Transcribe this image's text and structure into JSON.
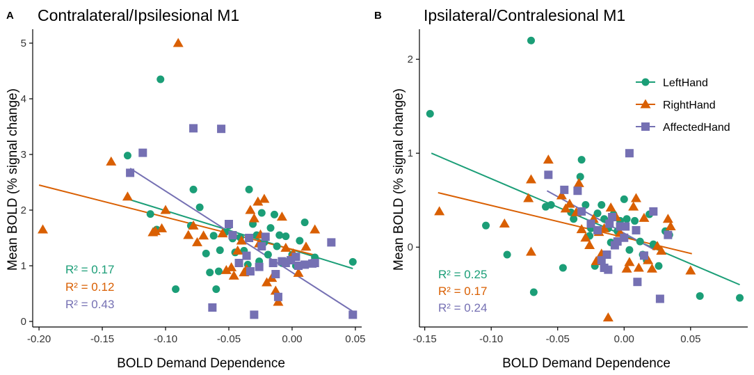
{
  "colors": {
    "left": "#1b9e77",
    "right": "#d95f02",
    "affected": "#7570b3",
    "axis": "#000000"
  },
  "chart_data": [
    {
      "panel_label": "A",
      "type": "scatter",
      "title": "Contralateral/Ipsilesional M1",
      "xlabel": "BOLD Demand Dependence",
      "ylabel": "Mean BOLD (% signal change)",
      "xlim": [
        -0.205,
        0.055
      ],
      "ylim": [
        -0.1,
        5.25
      ],
      "xticks": [
        -0.2,
        -0.15,
        -0.1,
        -0.05,
        0.0,
        0.05
      ],
      "xtick_labels": [
        "-0.20",
        "-0.15",
        "-0.10",
        "-0.05",
        "0.00",
        "0.05"
      ],
      "yticks": [
        0,
        1,
        2,
        3,
        4,
        5
      ],
      "ytick_labels": [
        "0",
        "1",
        "2",
        "3",
        "4",
        "5"
      ],
      "legend": null,
      "annotations": [
        {
          "text": "R² = 0.17",
          "series": "LeftHand"
        },
        {
          "text": "R² = 0.12",
          "series": "RightHand"
        },
        {
          "text": "R² = 0.43",
          "series": "AffectedHand"
        }
      ],
      "series": [
        {
          "name": "LeftHand",
          "marker": "circle",
          "color_key": "left",
          "fit": {
            "x0": -0.13,
            "y0": 2.2,
            "x1": 0.048,
            "y1": 0.95
          },
          "points": [
            [
              -0.104,
              4.35
            ],
            [
              -0.13,
              2.98
            ],
            [
              -0.112,
              1.93
            ],
            [
              -0.107,
              1.65
            ],
            [
              -0.078,
              2.37
            ],
            [
              -0.073,
              2.05
            ],
            [
              -0.08,
              1.72
            ],
            [
              -0.068,
              1.22
            ],
            [
              -0.065,
              0.88
            ],
            [
              -0.06,
              0.58
            ],
            [
              -0.062,
              1.54
            ],
            [
              -0.057,
              1.28
            ],
            [
              -0.053,
              1.6
            ],
            [
              -0.05,
              1.72
            ],
            [
              -0.047,
              1.49
            ],
            [
              -0.045,
              1.24
            ],
            [
              -0.041,
              1.51
            ],
            [
              -0.038,
              1.27
            ],
            [
              -0.034,
              2.37
            ],
            [
              -0.031,
              1.75
            ],
            [
              -0.028,
              1.55
            ],
            [
              -0.026,
              1.08
            ],
            [
              -0.024,
              1.95
            ],
            [
              -0.022,
              1.42
            ],
            [
              -0.019,
              1.2
            ],
            [
              -0.017,
              1.68
            ],
            [
              -0.014,
              1.92
            ],
            [
              -0.012,
              1.35
            ],
            [
              -0.01,
              1.55
            ],
            [
              -0.008,
              1.05
            ],
            [
              -0.005,
              1.53
            ],
            [
              -0.002,
              1.1
            ],
            [
              0.0,
              1.2
            ],
            [
              0.003,
              1.0
            ],
            [
              0.006,
              1.45
            ],
            [
              0.01,
              1.78
            ],
            [
              0.018,
              1.15
            ],
            [
              0.048,
              1.07
            ],
            [
              -0.092,
              0.58
            ],
            [
              -0.058,
              0.9
            ],
            [
              -0.035,
              1.02
            ]
          ]
        },
        {
          "name": "RightHand",
          "marker": "triangle",
          "color_key": "right",
          "fit": {
            "x0": -0.2,
            "y0": 2.45,
            "x1": 0.02,
            "y1": 1.18
          },
          "points": [
            [
              -0.197,
              1.65
            ],
            [
              -0.143,
              2.87
            ],
            [
              -0.13,
              2.24
            ],
            [
              -0.11,
              1.6
            ],
            [
              -0.108,
              1.62
            ],
            [
              -0.103,
              1.67
            ],
            [
              -0.1,
              2.0
            ],
            [
              -0.09,
              5.0
            ],
            [
              -0.082,
              1.55
            ],
            [
              -0.078,
              1.72
            ],
            [
              -0.075,
              1.42
            ],
            [
              -0.07,
              1.54
            ],
            [
              -0.055,
              1.58
            ],
            [
              -0.052,
              0.92
            ],
            [
              -0.048,
              0.97
            ],
            [
              -0.046,
              0.82
            ],
            [
              -0.043,
              1.27
            ],
            [
              -0.04,
              1.45
            ],
            [
              -0.036,
              0.94
            ],
            [
              -0.033,
              2.0
            ],
            [
              -0.03,
              1.85
            ],
            [
              -0.027,
              2.15
            ],
            [
              -0.025,
              1.56
            ],
            [
              -0.022,
              2.2
            ],
            [
              -0.02,
              0.7
            ],
            [
              -0.016,
              0.78
            ],
            [
              -0.013,
              0.55
            ],
            [
              -0.011,
              0.35
            ],
            [
              -0.008,
              1.88
            ],
            [
              -0.005,
              1.32
            ],
            [
              0.001,
              1.22
            ],
            [
              0.005,
              0.87
            ],
            [
              0.011,
              1.34
            ],
            [
              0.018,
              1.65
            ],
            [
              -0.026,
              1.4
            ],
            [
              -0.038,
              0.88
            ]
          ]
        },
        {
          "name": "AffectedHand",
          "marker": "square",
          "color_key": "affected",
          "fit": {
            "x0": -0.128,
            "y0": 2.75,
            "x1": 0.048,
            "y1": 0.18
          },
          "points": [
            [
              -0.128,
              2.67
            ],
            [
              -0.118,
              3.03
            ],
            [
              -0.078,
              3.47
            ],
            [
              -0.056,
              3.46
            ],
            [
              -0.05,
              1.75
            ],
            [
              -0.047,
              1.55
            ],
            [
              -0.042,
              1.05
            ],
            [
              -0.036,
              1.18
            ],
            [
              -0.034,
              1.5
            ],
            [
              -0.03,
              0.12
            ],
            [
              -0.026,
              0.98
            ],
            [
              -0.024,
              1.35
            ],
            [
              -0.021,
              1.52
            ],
            [
              -0.015,
              1.05
            ],
            [
              -0.013,
              0.85
            ],
            [
              -0.011,
              0.44
            ],
            [
              -0.008,
              1.08
            ],
            [
              -0.005,
              1.05
            ],
            [
              -0.001,
              1.1
            ],
            [
              0.003,
              1.16
            ],
            [
              0.005,
              1.0
            ],
            [
              0.01,
              1.02
            ],
            [
              0.016,
              1.04
            ],
            [
              0.018,
              1.05
            ],
            [
              0.031,
              1.42
            ],
            [
              0.048,
              0.12
            ],
            [
              -0.063,
              0.25
            ],
            [
              -0.033,
              0.9
            ]
          ]
        }
      ]
    },
    {
      "panel_label": "B",
      "type": "scatter",
      "title": "Ipsilateral/Contralesional M1",
      "xlabel": "BOLD Demand Dependence",
      "ylabel": "Mean BOLD (% signal change)",
      "xlim": [
        -0.154,
        0.093
      ],
      "ylim": [
        -0.85,
        2.32
      ],
      "xticks": [
        -0.15,
        -0.1,
        -0.05,
        0.0,
        0.05
      ],
      "xtick_labels": [
        "-0.15",
        "-0.10",
        "-0.05",
        "0.00",
        "0.05"
      ],
      "yticks": [
        0,
        1,
        2
      ],
      "ytick_labels": [
        "0",
        "1",
        "2"
      ],
      "legend": {
        "position": "top-right",
        "entries": [
          {
            "label": "LeftHand",
            "marker": "circle",
            "color_key": "left"
          },
          {
            "label": "RightHand",
            "marker": "triangle",
            "color_key": "right"
          },
          {
            "label": "AffectedHand",
            "marker": "square",
            "color_key": "affected"
          }
        ]
      },
      "annotations": [
        {
          "text": "R² = 0.25",
          "series": "LeftHand"
        },
        {
          "text": "R² = 0.17",
          "series": "RightHand"
        },
        {
          "text": "R² = 0.24",
          "series": "AffectedHand"
        }
      ],
      "series": [
        {
          "name": "LeftHand",
          "marker": "circle",
          "color_key": "left",
          "fit": {
            "x0": -0.145,
            "y0": 1.0,
            "x1": 0.087,
            "y1": -0.4
          },
          "points": [
            [
              -0.146,
              1.42
            ],
            [
              -0.104,
              0.23
            ],
            [
              -0.088,
              -0.08
            ],
            [
              -0.07,
              2.2
            ],
            [
              -0.068,
              -0.48
            ],
            [
              -0.059,
              0.43
            ],
            [
              -0.055,
              0.45
            ],
            [
              -0.046,
              -0.22
            ],
            [
              -0.04,
              0.37
            ],
            [
              -0.038,
              0.3
            ],
            [
              -0.033,
              0.75
            ],
            [
              -0.032,
              0.93
            ],
            [
              -0.029,
              0.45
            ],
            [
              -0.025,
              0.2
            ],
            [
              -0.022,
              -0.2
            ],
            [
              -0.02,
              0.36
            ],
            [
              -0.017,
              0.45
            ],
            [
              -0.015,
              0.3
            ],
            [
              -0.012,
              0.2
            ],
            [
              -0.01,
              0.05
            ],
            [
              -0.008,
              0.35
            ],
            [
              -0.005,
              0.17
            ],
            [
              -0.003,
              0.28
            ],
            [
              0.0,
              0.51
            ],
            [
              0.002,
              0.3
            ],
            [
              0.004,
              -0.03
            ],
            [
              0.008,
              0.28
            ],
            [
              0.012,
              0.06
            ],
            [
              0.014,
              -0.08
            ],
            [
              0.017,
              -0.14
            ],
            [
              0.019,
              0.35
            ],
            [
              0.022,
              0.03
            ],
            [
              0.026,
              -0.2
            ],
            [
              0.031,
              0.17
            ],
            [
              0.034,
              0.13
            ],
            [
              0.057,
              -0.52
            ],
            [
              0.087,
              -0.54
            ],
            [
              -0.026,
              0.12
            ]
          ]
        },
        {
          "name": "RightHand",
          "marker": "triangle",
          "color_key": "right",
          "fit": {
            "x0": -0.14,
            "y0": 0.58,
            "x1": 0.051,
            "y1": -0.07
          },
          "points": [
            [
              -0.139,
              0.38
            ],
            [
              -0.09,
              0.25
            ],
            [
              -0.07,
              0.72
            ],
            [
              -0.07,
              -0.05
            ],
            [
              -0.057,
              0.93
            ],
            [
              -0.047,
              0.55
            ],
            [
              -0.044,
              0.41
            ],
            [
              -0.041,
              0.46
            ],
            [
              -0.036,
              0.37
            ],
            [
              -0.034,
              0.68
            ],
            [
              -0.032,
              0.19
            ],
            [
              -0.029,
              0.1
            ],
            [
              -0.026,
              0.02
            ],
            [
              -0.023,
              0.3
            ],
            [
              -0.021,
              -0.15
            ],
            [
              -0.019,
              0.16
            ],
            [
              -0.017,
              -0.07
            ],
            [
              -0.015,
              0.2
            ],
            [
              -0.012,
              -0.75
            ],
            [
              -0.01,
              0.42
            ],
            [
              -0.006,
              0.32
            ],
            [
              -0.003,
              0.15
            ],
            [
              0.002,
              -0.23
            ],
            [
              0.004,
              -0.16
            ],
            [
              0.007,
              0.43
            ],
            [
              0.009,
              0.52
            ],
            [
              0.011,
              -0.22
            ],
            [
              0.015,
              0.31
            ],
            [
              0.018,
              -0.14
            ],
            [
              0.021,
              -0.23
            ],
            [
              0.025,
              0.01
            ],
            [
              0.028,
              -0.04
            ],
            [
              0.033,
              0.3
            ],
            [
              0.035,
              0.22
            ],
            [
              0.05,
              -0.25
            ],
            [
              -0.072,
              0.52
            ]
          ]
        },
        {
          "name": "AffectedHand",
          "marker": "square",
          "color_key": "affected",
          "fit": {
            "x0": -0.058,
            "y0": 0.6,
            "x1": 0.023,
            "y1": -0.03
          },
          "points": [
            [
              -0.057,
              0.77
            ],
            [
              -0.045,
              0.61
            ],
            [
              -0.035,
              0.6
            ],
            [
              -0.032,
              0.38
            ],
            [
              -0.025,
              0.25
            ],
            [
              -0.02,
              0.18
            ],
            [
              -0.017,
              -0.14
            ],
            [
              -0.015,
              -0.22
            ],
            [
              -0.013,
              -0.08
            ],
            [
              -0.011,
              0.25
            ],
            [
              -0.009,
              0.32
            ],
            [
              -0.007,
              0.02
            ],
            [
              -0.005,
              0.06
            ],
            [
              -0.003,
              0.22
            ],
            [
              0.0,
              0.1
            ],
            [
              0.004,
              1.0
            ],
            [
              0.009,
              0.18
            ],
            [
              0.01,
              -0.37
            ],
            [
              0.015,
              -0.09
            ],
            [
              0.022,
              0.38
            ],
            [
              0.027,
              -0.55
            ],
            [
              0.033,
              0.13
            ],
            [
              -0.012,
              -0.24
            ],
            [
              0.001,
              0.22
            ]
          ]
        }
      ]
    }
  ]
}
